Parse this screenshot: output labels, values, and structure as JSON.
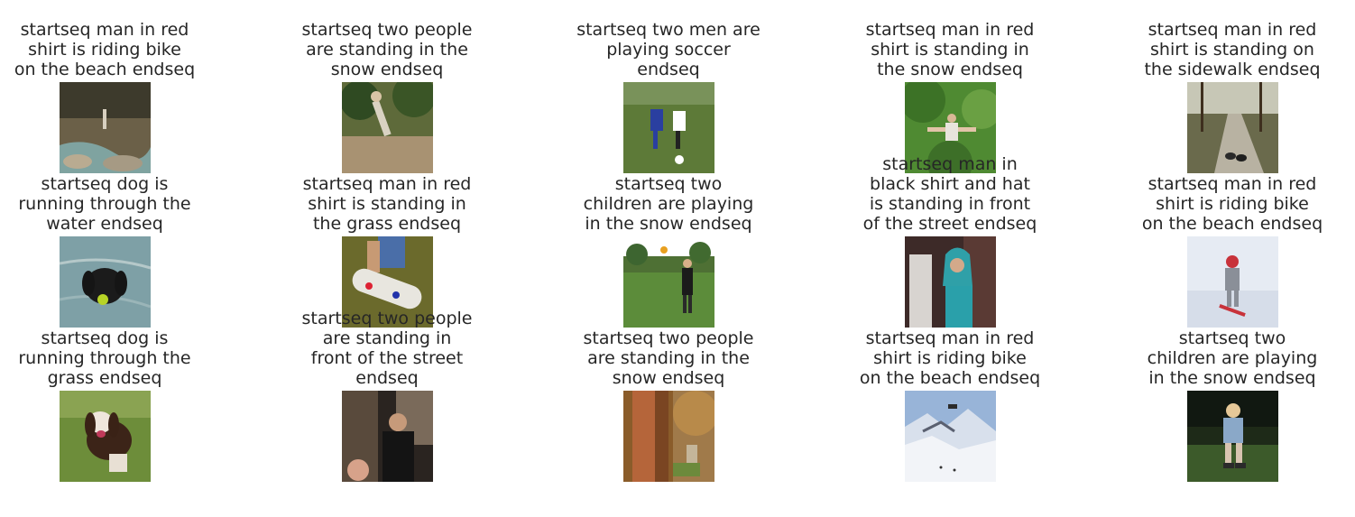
{
  "grid": [
    {
      "caption": [
        "startseq man in red",
        "shirt is riding bike",
        "on the beach endseq"
      ],
      "scene": "rocky-stream"
    },
    {
      "caption": [
        "startseq two people",
        "are standing in the",
        "snow endseq"
      ],
      "scene": "jumper-trees"
    },
    {
      "caption": [
        "startseq two men are",
        "playing soccer",
        "endseq"
      ],
      "scene": "soccer"
    },
    {
      "caption": [
        "startseq man in red",
        "shirt is standing in",
        "the snow endseq"
      ],
      "scene": "tree-jump"
    },
    {
      "caption": [
        "startseq man in red",
        "shirt is standing on",
        "the sidewalk endseq"
      ],
      "scene": "path-dogs"
    },
    {
      "caption": [
        "startseq dog is",
        "running through the",
        "water endseq"
      ],
      "scene": "black-dog-water"
    },
    {
      "caption": [
        "startseq man in red",
        "shirt is standing in",
        "the grass endseq"
      ],
      "scene": "skateboard"
    },
    {
      "caption": [
        "startseq two",
        "children are playing",
        "in the snow endseq"
      ],
      "scene": "park-frisbee"
    },
    {
      "caption": [
        "startseq man in",
        "black shirt and hat",
        "is standing in front",
        "of the street endseq"
      ],
      "scene": "hijab-woman"
    },
    {
      "caption": [
        "startseq man in red",
        "shirt is riding bike",
        "on the beach endseq"
      ],
      "scene": "child-snow"
    },
    {
      "caption": [
        "startseq dog is",
        "running through the",
        "grass endseq"
      ],
      "scene": "spaniel-grass"
    },
    {
      "caption": [
        "startseq two people",
        "are standing in",
        "front of the street",
        "endseq"
      ],
      "scene": "man-dark"
    },
    {
      "caption": [
        "startseq two people",
        "are standing in the",
        "snow endseq"
      ],
      "scene": "big-tree"
    },
    {
      "caption": [
        "startseq man in red",
        "shirt is riding bike",
        "on the beach endseq"
      ],
      "scene": "ski-mountain"
    },
    {
      "caption": [
        "startseq two",
        "children are playing",
        "in the snow endseq"
      ],
      "scene": "child-skates"
    }
  ]
}
